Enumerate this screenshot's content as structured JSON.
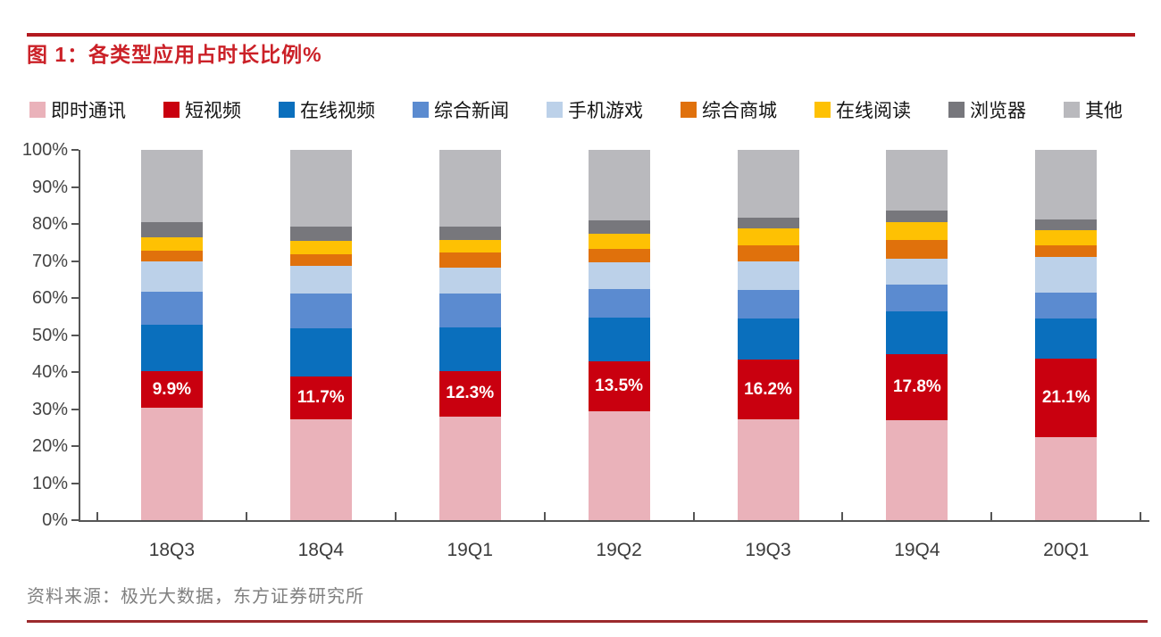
{
  "title": "图 1：各类型应用占时长比例%",
  "source": "资料来源：极光大数据，东方证券研究所",
  "colors": {
    "title_red": "#cb2128",
    "top_rule": "#b3191f",
    "bottom_rule": "#9c2a2d",
    "axis": "#555555",
    "data_label_text": "#ffffff"
  },
  "chart_data": {
    "type": "bar",
    "variant": "stacked-column-100",
    "unit": "percent",
    "title": "各类型应用占时长比例%",
    "grid": false,
    "legend_position": "top",
    "ylim": [
      0,
      100
    ],
    "y_ticks": [
      "100%",
      "90%",
      "80%",
      "70%",
      "60%",
      "50%",
      "40%",
      "30%",
      "20%",
      "10%",
      "0%"
    ],
    "categories": [
      "18Q3",
      "18Q4",
      "19Q1",
      "19Q2",
      "19Q3",
      "19Q4",
      "20Q1"
    ],
    "label_series": "短视频",
    "series": [
      {
        "name": "即时通讯",
        "color": "#eab2ba",
        "values": [
          30.3,
          27.2,
          28.0,
          29.5,
          27.2,
          27.0,
          22.5
        ]
      },
      {
        "name": "短视频",
        "color": "#c9000f",
        "values": [
          9.9,
          11.7,
          12.3,
          13.5,
          16.2,
          17.8,
          21.1
        ],
        "data_labels": [
          "9.9%",
          "11.7%",
          "12.3%",
          "13.5%",
          "16.2%",
          "17.8%",
          "21.1%"
        ]
      },
      {
        "name": "在线视频",
        "color": "#0a6fbd",
        "values": [
          12.5,
          12.9,
          11.8,
          11.6,
          11.0,
          11.5,
          10.9
        ]
      },
      {
        "name": "综合新闻",
        "color": "#5b8bd0",
        "values": [
          9.0,
          9.3,
          9.2,
          7.8,
          7.7,
          7.2,
          6.9
        ]
      },
      {
        "name": "手机游戏",
        "color": "#bcd1e9",
        "values": [
          8.1,
          7.5,
          6.9,
          7.3,
          7.7,
          7.2,
          9.7
        ]
      },
      {
        "name": "综合商城",
        "color": "#e0710c",
        "values": [
          2.9,
          3.3,
          4.2,
          3.5,
          4.5,
          5.0,
          3.1
        ]
      },
      {
        "name": "在线阅读",
        "color": "#fec103",
        "values": [
          3.6,
          3.6,
          3.3,
          4.1,
          4.5,
          4.9,
          4.0
        ]
      },
      {
        "name": "浏览器",
        "color": "#77777c",
        "values": [
          4.3,
          3.7,
          3.7,
          3.7,
          2.8,
          3.1,
          2.9
        ]
      },
      {
        "name": "其他",
        "color": "#b9b9bd",
        "values": [
          19.4,
          20.8,
          20.6,
          19.0,
          18.4,
          16.3,
          18.9
        ]
      }
    ]
  }
}
